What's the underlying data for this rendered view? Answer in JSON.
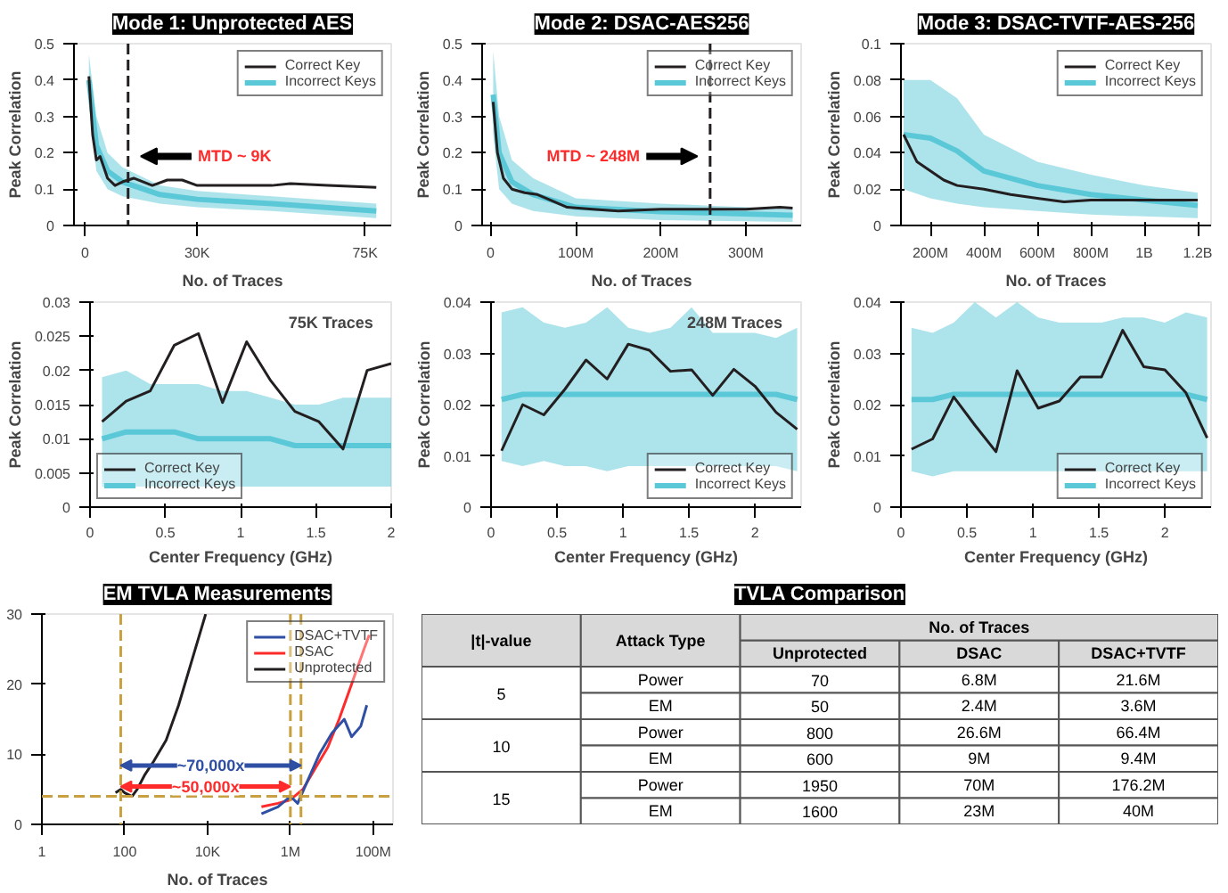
{
  "chart_data": [
    {
      "type": "line",
      "title": "Mode 1: Unprotected AES",
      "xlabel": "No. of Traces",
      "ylabel": "Peak Correlation",
      "xlim": [
        -3000,
        82000
      ],
      "ylim": [
        0,
        0.5
      ],
      "xticks": [
        0,
        {
          "value": 30000,
          "label": "30K"
        },
        {
          "value": 75000,
          "label": "75K"
        }
      ],
      "yticks": [
        0,
        0.1,
        0.2,
        0.3,
        0.4,
        0.5
      ],
      "legend": "top right",
      "series": [
        {
          "name": "Incorrect Keys",
          "color": "#5bc8d8",
          "x": [
            1000,
            3000,
            6000,
            10000,
            20000,
            30000,
            50000,
            78000
          ],
          "values": [
            0.4,
            0.22,
            0.15,
            0.12,
            0.085,
            0.072,
            0.06,
            0.04
          ],
          "lower": [
            0.33,
            0.15,
            0.1,
            0.08,
            0.06,
            0.05,
            0.04,
            0.02
          ],
          "upper": [
            0.47,
            0.3,
            0.2,
            0.16,
            0.11,
            0.095,
            0.08,
            0.06
          ]
        },
        {
          "name": "Correct Key",
          "color": "#231f20",
          "x": [
            1000,
            2000,
            3000,
            4000,
            6000,
            8000,
            10000,
            13000,
            18000,
            22000,
            26000,
            30000,
            40000,
            50000,
            55000,
            65000,
            78000
          ],
          "values": [
            0.41,
            0.25,
            0.18,
            0.19,
            0.13,
            0.11,
            0.12,
            0.13,
            0.11,
            0.125,
            0.125,
            0.11,
            0.11,
            0.11,
            0.115,
            0.11,
            0.105
          ]
        }
      ],
      "ref_lines": [
        {
          "axis": "x",
          "value": 11500,
          "label": "MTD ~ 9K",
          "color": "#231f20",
          "line_style": "dashed"
        }
      ]
    },
    {
      "type": "line",
      "title": "Mode 2: DSAC-AES256",
      "xlabel": "No. of Traces",
      "ylabel": "Peak Correlation",
      "xlim": [
        -10000000,
        365000000
      ],
      "ylim": [
        0,
        0.5
      ],
      "xticks": [
        0,
        {
          "value": 100000000,
          "label": "100M"
        },
        {
          "value": 200000000,
          "label": "200M"
        },
        {
          "value": 300000000,
          "label": "300M"
        }
      ],
      "yticks": [
        0,
        0.1,
        0.2,
        0.3,
        0.4,
        0.5
      ],
      "legend": "top right",
      "series": [
        {
          "name": "Incorrect Keys",
          "color": "#5bc8d8",
          "x": [
            3000000,
            10000000,
            25000000,
            50000000,
            100000000,
            200000000,
            355000000
          ],
          "values": [
            0.36,
            0.2,
            0.12,
            0.085,
            0.05,
            0.038,
            0.028
          ],
          "lower": [
            0.25,
            0.1,
            0.06,
            0.04,
            0.025,
            0.015,
            0.01
          ],
          "upper": [
            0.48,
            0.3,
            0.18,
            0.13,
            0.075,
            0.06,
            0.045
          ]
        },
        {
          "name": "Correct Key",
          "color": "#231f20",
          "x": [
            3000000,
            8000000,
            15000000,
            25000000,
            40000000,
            55000000,
            70000000,
            90000000,
            120000000,
            150000000,
            200000000,
            260000000,
            300000000,
            340000000,
            355000000
          ],
          "values": [
            0.34,
            0.2,
            0.13,
            0.1,
            0.09,
            0.085,
            0.07,
            0.05,
            0.045,
            0.04,
            0.045,
            0.045,
            0.045,
            0.05,
            0.048
          ]
        }
      ],
      "ref_lines": [
        {
          "axis": "x",
          "value": 258000000,
          "label": "MTD ~ 248M",
          "color": "#231f20",
          "line_style": "dashed"
        }
      ]
    },
    {
      "type": "line",
      "title": "Mode 3: DSAC-TVTF-AES-256",
      "xlabel": "No. of Traces",
      "ylabel": "Peak Correlation",
      "xlim": [
        90000000,
        1250000000
      ],
      "ylim": [
        0,
        0.1
      ],
      "xticks": [
        {
          "value": 200000000,
          "label": "200M"
        },
        {
          "value": 400000000,
          "label": "400M"
        },
        {
          "value": 600000000,
          "label": "600M"
        },
        {
          "value": 800000000,
          "label": "800M"
        },
        {
          "value": 1000000000,
          "label": "1B"
        },
        {
          "value": 1200000000,
          "label": "1.2B"
        }
      ],
      "yticks": [
        0,
        0.02,
        0.04,
        0.06,
        0.08,
        0.1
      ],
      "legend": "top right",
      "series": [
        {
          "name": "Incorrect Keys",
          "color": "#5bc8d8",
          "x": [
            100000000,
            200000000,
            300000000,
            400000000,
            600000000,
            800000000,
            1000000000,
            1200000000
          ],
          "values": [
            0.05,
            0.048,
            0.041,
            0.03,
            0.022,
            0.017,
            0.014,
            0.011
          ],
          "lower": [
            0.02,
            0.015,
            0.012,
            0.01,
            0.008,
            0.006,
            0.005,
            0.004
          ],
          "upper": [
            0.08,
            0.08,
            0.07,
            0.05,
            0.035,
            0.028,
            0.022,
            0.018
          ]
        },
        {
          "name": "Correct Key",
          "color": "#231f20",
          "x": [
            100000000,
            150000000,
            200000000,
            250000000,
            300000000,
            400000000,
            500000000,
            600000000,
            700000000,
            800000000,
            1000000000,
            1200000000
          ],
          "values": [
            0.05,
            0.035,
            0.03,
            0.025,
            0.022,
            0.02,
            0.017,
            0.015,
            0.013,
            0.014,
            0.014,
            0.014
          ]
        }
      ]
    },
    {
      "type": "line",
      "xlabel": "Center Frequency (GHz)",
      "ylabel": "Peak Correlation",
      "xlim": [
        0,
        2
      ],
      "ylim": [
        0,
        0.03
      ],
      "xticks": [
        0,
        0.5,
        1,
        1.5,
        2
      ],
      "yticks": [
        0,
        0.005,
        0.01,
        0.015,
        0.02,
        0.025,
        0.03
      ],
      "legend": "bottom left",
      "annotations": [
        "75K Traces"
      ],
      "x": [
        0.08,
        0.24,
        0.4,
        0.56,
        0.72,
        0.88,
        1.04,
        1.2,
        1.36,
        1.52,
        1.68,
        1.84,
        2.0
      ],
      "series": [
        {
          "name": "Incorrect Keys",
          "color": "#5bc8d8",
          "values": [
            0.01,
            0.011,
            0.011,
            0.011,
            0.01,
            0.01,
            0.01,
            0.01,
            0.009,
            0.009,
            0.009,
            0.009,
            0.009
          ],
          "lower": [
            0.003,
            0.003,
            0.003,
            0.003,
            0.003,
            0.003,
            0.003,
            0.003,
            0.003,
            0.003,
            0.003,
            0.003,
            0.003
          ],
          "upper": [
            0.019,
            0.02,
            0.018,
            0.018,
            0.018,
            0.017,
            0.017,
            0.016,
            0.015,
            0.015,
            0.016,
            0.016,
            0.016
          ]
        },
        {
          "name": "Correct Key",
          "color": "#231f20",
          "values": [
            0.0125,
            0.0155,
            0.017,
            0.0237,
            0.0254,
            0.0153,
            0.0242,
            0.0185,
            0.014,
            0.0125,
            0.0085,
            0.02,
            0.021
          ]
        }
      ]
    },
    {
      "type": "line",
      "xlabel": "Center Frequency (GHz)",
      "ylabel": "Peak Correlation",
      "xlim": [
        0,
        2.35
      ],
      "ylim": [
        0,
        0.04
      ],
      "xticks": [
        0,
        0.5,
        1,
        1.5,
        2
      ],
      "yticks": [
        0,
        0.01,
        0.02,
        0.03,
        0.04
      ],
      "legend": "bottom right",
      "annotations": [
        "248M Traces"
      ],
      "x": [
        0.08,
        0.24,
        0.4,
        0.56,
        0.72,
        0.88,
        1.04,
        1.2,
        1.36,
        1.52,
        1.68,
        1.84,
        2.0,
        2.16,
        2.32
      ],
      "series": [
        {
          "name": "Incorrect Keys",
          "color": "#5bc8d8",
          "values": [
            0.021,
            0.022,
            0.022,
            0.022,
            0.022,
            0.022,
            0.022,
            0.022,
            0.022,
            0.022,
            0.022,
            0.022,
            0.022,
            0.022,
            0.021
          ],
          "lower": [
            0.009,
            0.008,
            0.009,
            0.008,
            0.008,
            0.007,
            0.008,
            0.008,
            0.008,
            0.008,
            0.008,
            0.008,
            0.008,
            0.008,
            0.007
          ],
          "upper": [
            0.038,
            0.039,
            0.036,
            0.035,
            0.036,
            0.039,
            0.035,
            0.034,
            0.035,
            0.039,
            0.034,
            0.034,
            0.034,
            0.033,
            0.035
          ]
        },
        {
          "name": "Correct Key",
          "color": "#231f20",
          "values": [
            0.011,
            0.02,
            0.018,
            0.023,
            0.0287,
            0.025,
            0.0318,
            0.0306,
            0.0265,
            0.0268,
            0.0218,
            0.0269,
            0.0236,
            0.0185,
            0.0152
          ]
        }
      ]
    },
    {
      "type": "line",
      "xlabel": "Center Frequency (GHz)",
      "ylabel": "Peak Correlation",
      "xlim": [
        0,
        2.35
      ],
      "ylim": [
        0,
        0.04
      ],
      "xticks": [
        0,
        0.5,
        1,
        1.5,
        2
      ],
      "yticks": [
        0,
        0.01,
        0.02,
        0.03,
        0.04
      ],
      "legend": "bottom right",
      "x": [
        0.08,
        0.24,
        0.4,
        0.56,
        0.72,
        0.88,
        1.04,
        1.2,
        1.36,
        1.52,
        1.68,
        1.84,
        2.0,
        2.16,
        2.32
      ],
      "series": [
        {
          "name": "Incorrect Keys",
          "color": "#5bc8d8",
          "values": [
            0.021,
            0.021,
            0.022,
            0.022,
            0.022,
            0.022,
            0.022,
            0.022,
            0.022,
            0.022,
            0.022,
            0.022,
            0.022,
            0.022,
            0.021
          ],
          "lower": [
            0.007,
            0.006,
            0.007,
            0.007,
            0.007,
            0.007,
            0.007,
            0.007,
            0.007,
            0.007,
            0.007,
            0.007,
            0.007,
            0.007,
            0.007
          ],
          "upper": [
            0.035,
            0.034,
            0.036,
            0.04,
            0.037,
            0.04,
            0.037,
            0.036,
            0.036,
            0.036,
            0.037,
            0.037,
            0.036,
            0.038,
            0.037
          ]
        },
        {
          "name": "Correct Key",
          "color": "#231f20",
          "values": [
            0.0113,
            0.0133,
            0.0215,
            0.016,
            0.0108,
            0.0266,
            0.0193,
            0.0207,
            0.0254,
            0.0254,
            0.0345,
            0.0274,
            0.0268,
            0.0223,
            0.0135
          ]
        }
      ]
    },
    {
      "type": "line",
      "title": "EM TVLA Measurements",
      "xlabel": "No. of Traces",
      "log": "x",
      "xlim": [
        1,
        300000000
      ],
      "ylim": [
        0,
        30
      ],
      "xticks": [
        1,
        100,
        {
          "value": 10000,
          "label": "10K"
        },
        {
          "value": 1000000,
          "label": "1M"
        },
        {
          "value": 100000000,
          "label": "100M"
        }
      ],
      "yticks": [
        0,
        10,
        20,
        30
      ],
      "legend": "top right",
      "series": [
        {
          "name": "Unprotected",
          "color": "#231f20",
          "x": [
            60,
            80,
            100,
            150,
            200,
            300,
            500,
            1000,
            2000,
            4000,
            9000
          ],
          "values": [
            4.5,
            5,
            4.5,
            4,
            5,
            7,
            9,
            12,
            17,
            23,
            30
          ]
        },
        {
          "name": "DSAC",
          "color": "#ff2a2a",
          "x": [
            200000,
            500000,
            1000000,
            2000000,
            4000000,
            8000000,
            15000000,
            30000000,
            60000000,
            80000000
          ],
          "values": [
            2.5,
            3,
            3.5,
            5,
            8,
            11,
            15,
            20,
            25,
            27
          ]
        },
        {
          "name": "DSAC+TVTF",
          "color": "#2e4fa3",
          "x": [
            200000,
            500000,
            1000000,
            1500000,
            2500000,
            5000000,
            10000000,
            20000000,
            30000000,
            50000000,
            70000000
          ],
          "values": [
            1.5,
            2.5,
            4,
            3,
            6,
            10,
            13,
            15,
            12.5,
            14,
            17
          ]
        }
      ],
      "ref_lines": [
        {
          "axis": "y",
          "value": 4,
          "color": "#c8a040",
          "line_style": "dashed"
        },
        {
          "axis": "x",
          "value": 80,
          "color": "#c8a040",
          "line_style": "dashed"
        },
        {
          "axis": "x",
          "value": 1000000,
          "color": "#c8a040",
          "line_style": "dashed"
        },
        {
          "axis": "x",
          "value": 1800000,
          "color": "#c8a040",
          "line_style": "dashed"
        }
      ],
      "annotations": [
        "~70,000x",
        "~50,000x"
      ]
    },
    {
      "type": "other",
      "title": "TVLA Comparison",
      "categories": [
        "|t|-value",
        "Attack Type",
        "Unprotected",
        "DSAC",
        "DSAC+TVTF"
      ],
      "annotations": [
        "No. of Traces"
      ],
      "cell_labels": [
        [
          "5",
          "Power",
          "70",
          "6.8M",
          "21.6M"
        ],
        [
          null,
          "EM",
          "50",
          "2.4M",
          "3.6M"
        ],
        [
          "10",
          "Power",
          "800",
          "26.6M",
          "66.4M"
        ],
        [
          null,
          "EM",
          "600",
          "9M",
          "9.4M"
        ],
        [
          "15",
          "Power",
          "1950",
          "70M",
          "176.2M"
        ],
        [
          null,
          "EM",
          "1600",
          "23M",
          "40M"
        ]
      ]
    }
  ]
}
